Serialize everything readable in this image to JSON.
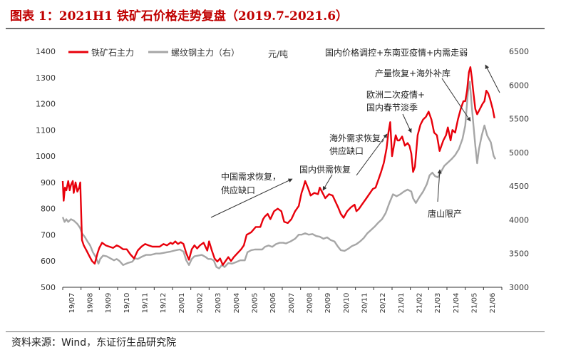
{
  "title": "图表 1：2021H1 铁矿石价格走势复盘（2019.7-2021.6）",
  "source": "资料来源：Wind，东证衍生品研究院",
  "colors": {
    "iron_ore": "#e8000b",
    "rebar": "#a6a6a6",
    "title": "#c00000"
  },
  "chart_data": {
    "type": "line",
    "unit_label": "元/吨",
    "left_axis": {
      "min": 500,
      "max": 1400,
      "ticks": [
        500,
        600,
        700,
        800,
        900,
        1000,
        1100,
        1200,
        1300,
        1400
      ]
    },
    "right_axis": {
      "min": 3000,
      "max": 6500,
      "ticks": [
        3000,
        3500,
        4000,
        4500,
        5000,
        5500,
        6000,
        6500
      ]
    },
    "x_ticks": [
      "19/07",
      "19/08",
      "19/09",
      "19/10",
      "19/11",
      "19/12",
      "20/01",
      "20/02",
      "20/03",
      "20/04",
      "20/05",
      "20/06",
      "20/07",
      "20/08",
      "20/09",
      "20/10",
      "20/11",
      "20/12",
      "21/01",
      "21/02",
      "21/03",
      "21/04",
      "21/05",
      "21/06"
    ],
    "legend_position": "top-left",
    "series": [
      {
        "name": "铁矿石主力",
        "axis": "left",
        "points": [
          [
            0.0,
            905
          ],
          [
            0.05,
            830
          ],
          [
            0.12,
            880
          ],
          [
            0.2,
            870
          ],
          [
            0.3,
            905
          ],
          [
            0.38,
            870
          ],
          [
            0.45,
            890
          ],
          [
            0.55,
            905
          ],
          [
            0.6,
            860
          ],
          [
            0.7,
            900
          ],
          [
            0.8,
            865
          ],
          [
            0.9,
            880
          ],
          [
            0.96,
            900
          ],
          [
            1.0,
            800
          ],
          [
            1.05,
            680
          ],
          [
            1.15,
            660
          ],
          [
            1.3,
            640
          ],
          [
            1.45,
            620
          ],
          [
            1.6,
            600
          ],
          [
            1.75,
            590
          ],
          [
            1.9,
            630
          ],
          [
            2.0,
            650
          ],
          [
            2.15,
            670
          ],
          [
            2.35,
            660
          ],
          [
            2.55,
            655
          ],
          [
            2.75,
            650
          ],
          [
            2.95,
            660
          ],
          [
            3.1,
            655
          ],
          [
            3.3,
            645
          ],
          [
            3.5,
            645
          ],
          [
            3.7,
            625
          ],
          [
            3.9,
            610
          ],
          [
            4.1,
            640
          ],
          [
            4.3,
            655
          ],
          [
            4.5,
            665
          ],
          [
            4.7,
            660
          ],
          [
            4.9,
            655
          ],
          [
            5.1,
            655
          ],
          [
            5.3,
            655
          ],
          [
            5.5,
            665
          ],
          [
            5.7,
            660
          ],
          [
            5.9,
            670
          ],
          [
            6.0,
            665
          ],
          [
            6.15,
            675
          ],
          [
            6.3,
            665
          ],
          [
            6.45,
            672
          ],
          [
            6.6,
            665
          ],
          [
            6.75,
            630
          ],
          [
            6.9,
            605
          ],
          [
            7.05,
            645
          ],
          [
            7.2,
            660
          ],
          [
            7.35,
            648
          ],
          [
            7.5,
            660
          ],
          [
            7.7,
            670
          ],
          [
            7.9,
            640
          ],
          [
            8.0,
            675
          ],
          [
            8.15,
            640
          ],
          [
            8.3,
            610
          ],
          [
            8.45,
            598
          ],
          [
            8.6,
            610
          ],
          [
            8.75,
            585
          ],
          [
            8.9,
            600
          ],
          [
            9.05,
            615
          ],
          [
            9.2,
            600
          ],
          [
            9.35,
            615
          ],
          [
            9.55,
            630
          ],
          [
            9.75,
            645
          ],
          [
            9.9,
            660
          ],
          [
            10.05,
            700
          ],
          [
            10.3,
            710
          ],
          [
            10.55,
            730
          ],
          [
            10.8,
            730
          ],
          [
            10.95,
            760
          ],
          [
            11.05,
            770
          ],
          [
            11.2,
            780
          ],
          [
            11.35,
            760
          ],
          [
            11.55,
            790
          ],
          [
            11.75,
            800
          ],
          [
            11.95,
            790
          ],
          [
            12.1,
            750
          ],
          [
            12.3,
            745
          ],
          [
            12.5,
            760
          ],
          [
            12.7,
            790
          ],
          [
            12.9,
            810
          ],
          [
            13.05,
            860
          ],
          [
            13.15,
            880
          ],
          [
            13.25,
            905
          ],
          [
            13.4,
            880
          ],
          [
            13.55,
            850
          ],
          [
            13.75,
            860
          ],
          [
            13.95,
            855
          ],
          [
            14.05,
            880
          ],
          [
            14.2,
            860
          ],
          [
            14.35,
            840
          ],
          [
            14.55,
            855
          ],
          [
            14.75,
            850
          ],
          [
            14.95,
            820
          ],
          [
            15.05,
            805
          ],
          [
            15.2,
            780
          ],
          [
            15.35,
            765
          ],
          [
            15.55,
            790
          ],
          [
            15.75,
            805
          ],
          [
            15.95,
            815
          ],
          [
            16.05,
            790
          ],
          [
            16.2,
            800
          ],
          [
            16.4,
            820
          ],
          [
            16.6,
            840
          ],
          [
            16.8,
            860
          ],
          [
            16.95,
            875
          ],
          [
            17.1,
            880
          ],
          [
            17.25,
            910
          ],
          [
            17.4,
            940
          ],
          [
            17.55,
            975
          ],
          [
            17.7,
            1030
          ],
          [
            17.8,
            1090
          ],
          [
            17.9,
            1130
          ],
          [
            18.0,
            1000
          ],
          [
            18.1,
            1040
          ],
          [
            18.2,
            1080
          ],
          [
            18.3,
            1060
          ],
          [
            18.4,
            1060
          ],
          [
            18.55,
            1075
          ],
          [
            18.7,
            1040
          ],
          [
            18.85,
            1050
          ],
          [
            18.95,
            1040
          ],
          [
            19.05,
            1010
          ],
          [
            19.15,
            940
          ],
          [
            19.25,
            960
          ],
          [
            19.4,
            1080
          ],
          [
            19.55,
            1120
          ],
          [
            19.7,
            1140
          ],
          [
            19.85,
            1150
          ],
          [
            20.0,
            1170
          ],
          [
            20.15,
            1140
          ],
          [
            20.3,
            1090
          ],
          [
            20.45,
            1080
          ],
          [
            20.6,
            1020
          ],
          [
            20.8,
            1060
          ],
          [
            20.95,
            1080
          ],
          [
            21.05,
            1110
          ],
          [
            21.2,
            1060
          ],
          [
            21.3,
            1100
          ],
          [
            21.45,
            1090
          ],
          [
            21.6,
            1140
          ],
          [
            21.75,
            1180
          ],
          [
            21.9,
            1210
          ],
          [
            22.0,
            1210
          ],
          [
            22.1,
            1250
          ],
          [
            22.2,
            1320
          ],
          [
            22.28,
            1340
          ],
          [
            22.36,
            1300
          ],
          [
            22.45,
            1240
          ],
          [
            22.55,
            1180
          ],
          [
            22.65,
            1160
          ],
          [
            22.8,
            1180
          ],
          [
            22.95,
            1200
          ],
          [
            23.05,
            1210
          ],
          [
            23.15,
            1250
          ],
          [
            23.25,
            1240
          ],
          [
            23.35,
            1220
          ],
          [
            23.5,
            1180
          ],
          [
            23.6,
            1145
          ]
        ]
      },
      {
        "name": "螺纹钢主力（右）",
        "axis": "right",
        "points": [
          [
            0.0,
            4040
          ],
          [
            0.1,
            3970
          ],
          [
            0.2,
            4010
          ],
          [
            0.3,
            3970
          ],
          [
            0.45,
            4010
          ],
          [
            0.6,
            3990
          ],
          [
            0.8,
            3940
          ],
          [
            0.95,
            3880
          ],
          [
            1.05,
            3800
          ],
          [
            1.2,
            3750
          ],
          [
            1.35,
            3680
          ],
          [
            1.5,
            3620
          ],
          [
            1.65,
            3520
          ],
          [
            1.8,
            3450
          ],
          [
            1.95,
            3350
          ],
          [
            2.05,
            3420
          ],
          [
            2.2,
            3470
          ],
          [
            2.4,
            3460
          ],
          [
            2.6,
            3430
          ],
          [
            2.8,
            3400
          ],
          [
            2.95,
            3420
          ],
          [
            3.1,
            3390
          ],
          [
            3.3,
            3330
          ],
          [
            3.55,
            3360
          ],
          [
            3.8,
            3380
          ],
          [
            3.95,
            3430
          ],
          [
            4.1,
            3420
          ],
          [
            4.3,
            3450
          ],
          [
            4.55,
            3480
          ],
          [
            4.8,
            3480
          ],
          [
            4.95,
            3490
          ],
          [
            5.1,
            3500
          ],
          [
            5.3,
            3500
          ],
          [
            5.5,
            3510
          ],
          [
            5.7,
            3520
          ],
          [
            5.9,
            3530
          ],
          [
            6.05,
            3540
          ],
          [
            6.2,
            3550
          ],
          [
            6.4,
            3560
          ],
          [
            6.6,
            3530
          ],
          [
            6.75,
            3400
          ],
          [
            6.9,
            3330
          ],
          [
            7.05,
            3420
          ],
          [
            7.2,
            3460
          ],
          [
            7.4,
            3470
          ],
          [
            7.6,
            3480
          ],
          [
            7.8,
            3450
          ],
          [
            7.95,
            3420
          ],
          [
            8.1,
            3420
          ],
          [
            8.25,
            3400
          ],
          [
            8.4,
            3300
          ],
          [
            8.55,
            3280
          ],
          [
            8.7,
            3330
          ],
          [
            8.85,
            3300
          ],
          [
            9.05,
            3360
          ],
          [
            9.25,
            3350
          ],
          [
            9.45,
            3370
          ],
          [
            9.7,
            3400
          ],
          [
            9.95,
            3400
          ],
          [
            10.1,
            3520
          ],
          [
            10.3,
            3550
          ],
          [
            10.5,
            3560
          ],
          [
            10.7,
            3560
          ],
          [
            10.9,
            3560
          ],
          [
            11.05,
            3600
          ],
          [
            11.25,
            3620
          ],
          [
            11.45,
            3600
          ],
          [
            11.65,
            3640
          ],
          [
            11.85,
            3660
          ],
          [
            12.05,
            3660
          ],
          [
            12.2,
            3650
          ],
          [
            12.45,
            3680
          ],
          [
            12.7,
            3720
          ],
          [
            12.9,
            3780
          ],
          [
            13.05,
            3780
          ],
          [
            13.25,
            3800
          ],
          [
            13.45,
            3780
          ],
          [
            13.65,
            3790
          ],
          [
            13.85,
            3760
          ],
          [
            14.05,
            3750
          ],
          [
            14.25,
            3720
          ],
          [
            14.45,
            3740
          ],
          [
            14.65,
            3700
          ],
          [
            14.85,
            3680
          ],
          [
            15.05,
            3600
          ],
          [
            15.2,
            3550
          ],
          [
            15.4,
            3540
          ],
          [
            15.6,
            3570
          ],
          [
            15.8,
            3610
          ],
          [
            16.05,
            3640
          ],
          [
            16.25,
            3680
          ],
          [
            16.45,
            3730
          ],
          [
            16.65,
            3800
          ],
          [
            16.85,
            3850
          ],
          [
            17.05,
            3900
          ],
          [
            17.25,
            3960
          ],
          [
            17.45,
            4010
          ],
          [
            17.65,
            4100
          ],
          [
            17.85,
            4250
          ],
          [
            18.05,
            4380
          ],
          [
            18.25,
            4350
          ],
          [
            18.45,
            4380
          ],
          [
            18.65,
            4420
          ],
          [
            18.85,
            4450
          ],
          [
            19.05,
            4420
          ],
          [
            19.15,
            4320
          ],
          [
            19.3,
            4250
          ],
          [
            19.5,
            4340
          ],
          [
            19.7,
            4420
          ],
          [
            19.9,
            4530
          ],
          [
            20.05,
            4660
          ],
          [
            20.2,
            4700
          ],
          [
            20.35,
            4650
          ],
          [
            20.5,
            4630
          ],
          [
            20.65,
            4700
          ],
          [
            20.85,
            4800
          ],
          [
            21.05,
            4850
          ],
          [
            21.25,
            4900
          ],
          [
            21.45,
            4960
          ],
          [
            21.65,
            5050
          ],
          [
            21.85,
            5200
          ],
          [
            22.0,
            5400
          ],
          [
            22.15,
            5900
          ],
          [
            22.25,
            6050
          ],
          [
            22.35,
            5700
          ],
          [
            22.45,
            5400
          ],
          [
            22.55,
            5100
          ],
          [
            22.65,
            4840
          ],
          [
            22.75,
            5050
          ],
          [
            22.9,
            5250
          ],
          [
            23.05,
            5400
          ],
          [
            23.2,
            5250
          ],
          [
            23.4,
            5150
          ],
          [
            23.55,
            4950
          ],
          [
            23.65,
            4900
          ]
        ]
      }
    ],
    "annotations": [
      "中国需求恢复，",
      "供应缺口",
      "国内供需恢复",
      "海外需求恢复，",
      "供应缺口",
      "欧洲二次疫情+",
      "国内春节淡季",
      "产量恢复+海外补库",
      "国内价格调控+东南亚疫情+内需走弱",
      "唐山限产"
    ]
  }
}
